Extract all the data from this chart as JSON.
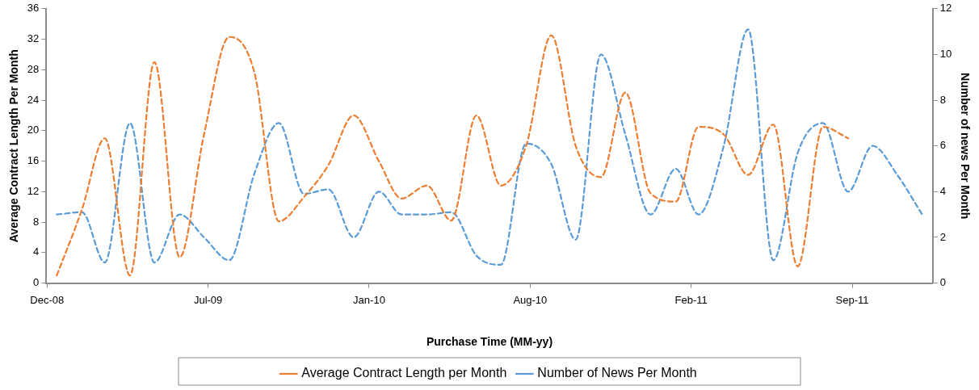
{
  "chart_data": {
    "type": "line",
    "xlabel": "Purchase Time (MM-yy)",
    "ylabel": "Average Contract Length Per Month",
    "y2label": "Number of news Per Month",
    "x": [
      "2009-01",
      "2009-02",
      "2009-03",
      "2009-04",
      "2009-05",
      "2009-06",
      "2009-07",
      "2009-08",
      "2009-09",
      "2009-10",
      "2009-11",
      "2009-12",
      "2010-01",
      "2010-02",
      "2010-03",
      "2010-04",
      "2010-05",
      "2010-06",
      "2010-07",
      "2010-08",
      "2010-09",
      "2010-10",
      "2010-11",
      "2010-12",
      "2011-01",
      "2011-02",
      "2011-03",
      "2011-04",
      "2011-05",
      "2011-06",
      "2011-07",
      "2011-08",
      "2011-09",
      "2011-10",
      "2011-11",
      "2011-12"
    ],
    "series": [
      {
        "name": "Average Contract Length per Month",
        "color": "#ed7d31",
        "values": [
          1,
          9.7,
          19,
          1,
          29,
          3.4,
          19.5,
          32.3,
          27.6,
          8.1,
          11.3,
          15.5,
          22,
          16,
          11.1,
          12.8,
          8.2,
          22,
          12.8,
          18,
          32.5,
          18,
          13.9,
          25,
          11.8,
          10.7,
          20.5,
          19.5,
          14.2,
          20.8,
          2.2,
          20.5,
          19,
          null,
          null,
          null
        ]
      },
      {
        "name": "Number of News Per Month",
        "color": "#5b9bd5",
        "axis": "y2",
        "values": [
          3,
          3.1,
          0.9,
          7,
          0.9,
          3,
          2,
          1,
          4.8,
          7,
          3.9,
          4.1,
          2,
          4,
          3,
          3,
          3.1,
          1.2,
          0.8,
          6.1,
          5.2,
          1.9,
          10,
          6.5,
          3,
          5,
          3,
          6,
          11.1,
          1,
          5.7,
          7,
          4,
          6,
          4.7,
          3
        ]
      }
    ],
    "xlim": [
      "2008-12-19",
      "2011-12-14"
    ],
    "xticks": [
      {
        "value": "2008-12-20",
        "label": "Dec-08"
      },
      {
        "value": "2009-07-06",
        "label": "Jul-09"
      },
      {
        "value": "2010-01-20",
        "label": "Jan-10"
      },
      {
        "value": "2010-08-06",
        "label": "Aug-10"
      },
      {
        "value": "2011-02-20",
        "label": "Feb-11"
      },
      {
        "value": "2011-09-06",
        "label": "Sep-11"
      }
    ],
    "ylim": [
      0,
      36
    ],
    "yticks": [
      0,
      4,
      8,
      12,
      16,
      20,
      24,
      28,
      32,
      36
    ],
    "y2lim": [
      0,
      12
    ],
    "y2ticks": [
      0,
      2,
      4,
      6,
      8,
      10,
      12
    ],
    "line_style": "dashed",
    "marker": "none",
    "grid": false,
    "legend": "bottom"
  }
}
